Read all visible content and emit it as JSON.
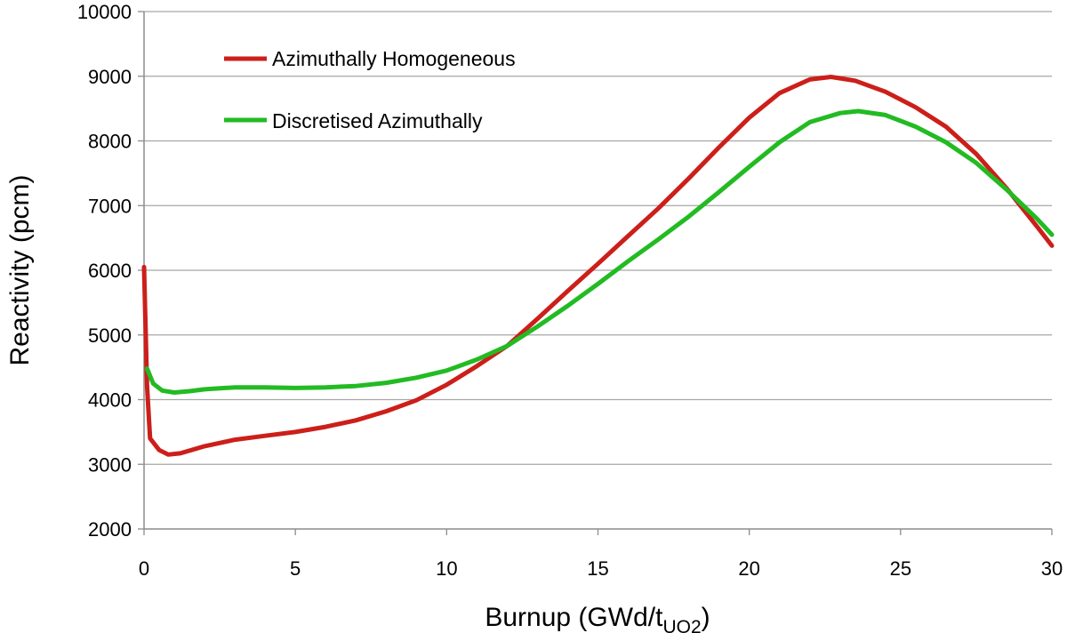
{
  "chart_data": {
    "type": "line",
    "xlabel": "Burnup (GWd/tUO2)",
    "xlabel_parts": {
      "main": "Burnup (GWd/t",
      "subscript": "UO2",
      "close": ")"
    },
    "ylabel": "Reactivity (pcm)",
    "xlim": [
      0,
      30
    ],
    "ylim": [
      2000,
      10000
    ],
    "x_ticks": [
      0,
      5,
      10,
      15,
      20,
      25,
      30
    ],
    "y_ticks": [
      2000,
      3000,
      4000,
      5000,
      6000,
      7000,
      8000,
      9000,
      10000
    ],
    "grid": "horizontal",
    "legend_position": "top-left",
    "series": [
      {
        "name": "Azimuthally Homogeneous",
        "color": "#cc1f1a",
        "points": [
          [
            0,
            6050
          ],
          [
            0.1,
            4200
          ],
          [
            0.2,
            3400
          ],
          [
            0.5,
            3220
          ],
          [
            0.8,
            3150
          ],
          [
            1.2,
            3170
          ],
          [
            2,
            3280
          ],
          [
            3,
            3380
          ],
          [
            4,
            3440
          ],
          [
            5,
            3500
          ],
          [
            6,
            3580
          ],
          [
            7,
            3680
          ],
          [
            8,
            3820
          ],
          [
            9,
            3990
          ],
          [
            10,
            4230
          ],
          [
            11,
            4520
          ],
          [
            12,
            4830
          ],
          [
            13,
            5250
          ],
          [
            14,
            5680
          ],
          [
            15,
            6100
          ],
          [
            16,
            6530
          ],
          [
            17,
            6960
          ],
          [
            18,
            7420
          ],
          [
            19,
            7900
          ],
          [
            20,
            8360
          ],
          [
            21,
            8740
          ],
          [
            22,
            8950
          ],
          [
            22.7,
            8990
          ],
          [
            23.5,
            8930
          ],
          [
            24.5,
            8760
          ],
          [
            25.5,
            8520
          ],
          [
            26.5,
            8220
          ],
          [
            27.5,
            7800
          ],
          [
            28.5,
            7270
          ],
          [
            29.5,
            6680
          ],
          [
            30,
            6380
          ]
        ]
      },
      {
        "name": "Discretised Azimuthally",
        "color": "#22bb22",
        "points": [
          [
            0.1,
            4480
          ],
          [
            0.3,
            4250
          ],
          [
            0.6,
            4140
          ],
          [
            1,
            4110
          ],
          [
            1.5,
            4130
          ],
          [
            2,
            4160
          ],
          [
            3,
            4190
          ],
          [
            4,
            4190
          ],
          [
            5,
            4180
          ],
          [
            6,
            4190
          ],
          [
            7,
            4210
          ],
          [
            8,
            4260
          ],
          [
            9,
            4340
          ],
          [
            10,
            4450
          ],
          [
            11,
            4620
          ],
          [
            12,
            4830
          ],
          [
            13,
            5130
          ],
          [
            14,
            5450
          ],
          [
            15,
            5790
          ],
          [
            16,
            6140
          ],
          [
            17,
            6480
          ],
          [
            18,
            6830
          ],
          [
            19,
            7210
          ],
          [
            20,
            7600
          ],
          [
            21,
            7980
          ],
          [
            22,
            8290
          ],
          [
            23,
            8430
          ],
          [
            23.6,
            8460
          ],
          [
            24.5,
            8400
          ],
          [
            25.5,
            8220
          ],
          [
            26.5,
            7980
          ],
          [
            27.5,
            7660
          ],
          [
            28.5,
            7250
          ],
          [
            29.5,
            6800
          ],
          [
            30,
            6550
          ]
        ]
      }
    ]
  }
}
